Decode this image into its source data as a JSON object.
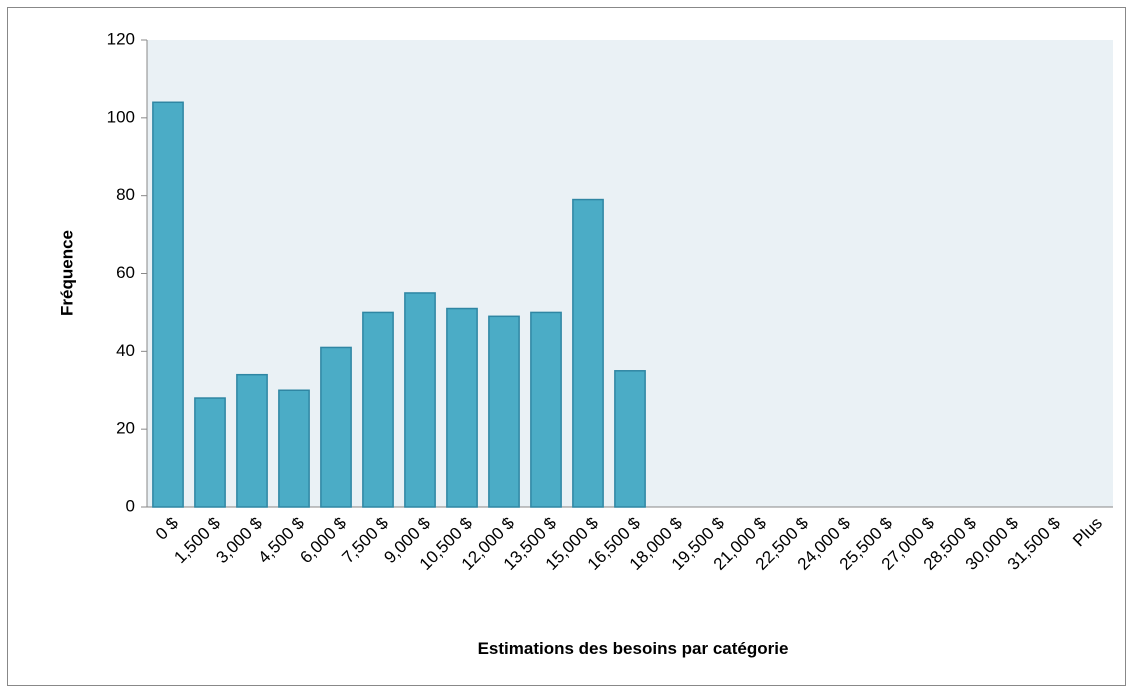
{
  "chart_data": {
    "type": "bar",
    "xlabel": "Estimations des besoins par catégorie",
    "ylabel": "Fréquence",
    "categories": [
      "0 $",
      "1,500 $",
      "3,000 $",
      "4,500 $",
      "6,000 $",
      "7,500 $",
      "9,000 $",
      "10,500 $",
      "12,000 $",
      "13,500 $",
      "15,000 $",
      "16,500 $",
      "18,000 $",
      "19,500 $",
      "21,000 $",
      "22,500 $",
      "24,000 $",
      "25,500 $",
      "27,000 $",
      "28,500 $",
      "30,000 $",
      "31,500 $",
      "Plus"
    ],
    "values": [
      104,
      28,
      34,
      30,
      41,
      50,
      55,
      51,
      49,
      50,
      79,
      35,
      0,
      0,
      0,
      0,
      0,
      0,
      0,
      0,
      0,
      0,
      0
    ],
    "color": "#4bacc6",
    "ylim": [
      0,
      120
    ],
    "yticks": [
      0,
      20,
      40,
      60,
      80,
      100,
      120
    ],
    "grid": false
  }
}
